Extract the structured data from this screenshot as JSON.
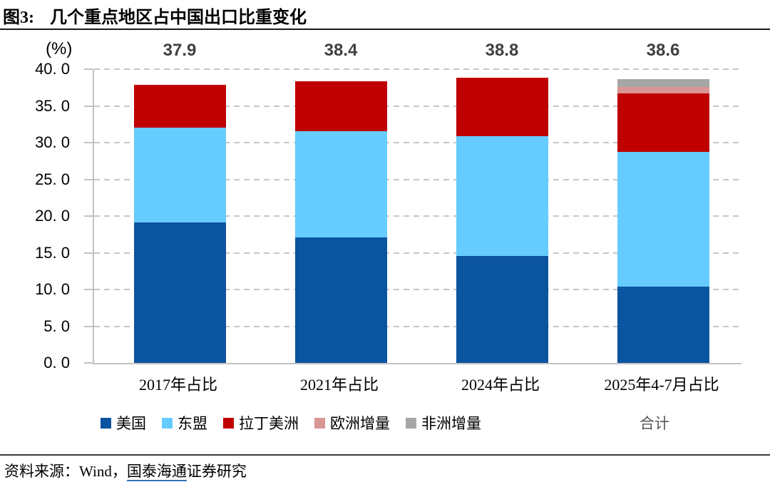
{
  "figure": {
    "label": "图3:",
    "title": "几个重点地区占中国出口比重变化"
  },
  "chart": {
    "unit_label": "(%)",
    "y_ticks": [
      "40. 0",
      "35. 0",
      "30. 0",
      "25. 0",
      "20. 0",
      "15. 0",
      "10. 0",
      "5. 0",
      "0. 0"
    ]
  },
  "chart_data": {
    "type": "bar",
    "stacked": true,
    "title": "几个重点地区占中国出口比重变化",
    "ylabel": "(%)",
    "ylim": [
      0,
      40
    ],
    "ytick_step": 5,
    "grid": "dashed-horizontal",
    "legend_position": "bottom",
    "categories": [
      "2017年占比",
      "2021年占比",
      "2024年占比",
      "2025年4-7月占比"
    ],
    "series": [
      {
        "name": "美国",
        "color": "#0B54A0",
        "values": [
          19.1,
          17.1,
          14.6,
          10.4
        ]
      },
      {
        "name": "东盟",
        "color": "#66CCFF",
        "values": [
          12.9,
          14.5,
          16.3,
          18.3
        ]
      },
      {
        "name": "拉丁美洲",
        "color": "#C00000",
        "values": [
          5.9,
          6.8,
          7.9,
          8.0
        ]
      },
      {
        "name": "欧洲增量",
        "color": "#D99694",
        "values": [
          0,
          0,
          0,
          0.9
        ]
      },
      {
        "name": "非洲增量",
        "color": "#A6A6A6",
        "values": [
          0,
          0,
          0,
          1.0
        ]
      }
    ],
    "totals": {
      "name": "合计",
      "values": [
        37.9,
        38.4,
        38.8,
        38.6
      ]
    }
  },
  "colors": {
    "grid": "#C6C6C6",
    "axis": "#C2C2C2",
    "total_label_text": "#404040",
    "legend_total_text": "#595959",
    "source_link_underline": "#2E75B6"
  },
  "source": {
    "label": "资料来源：",
    "provider": "Wind，",
    "institution": "国泰海通",
    "suffix": "证券研究"
  }
}
